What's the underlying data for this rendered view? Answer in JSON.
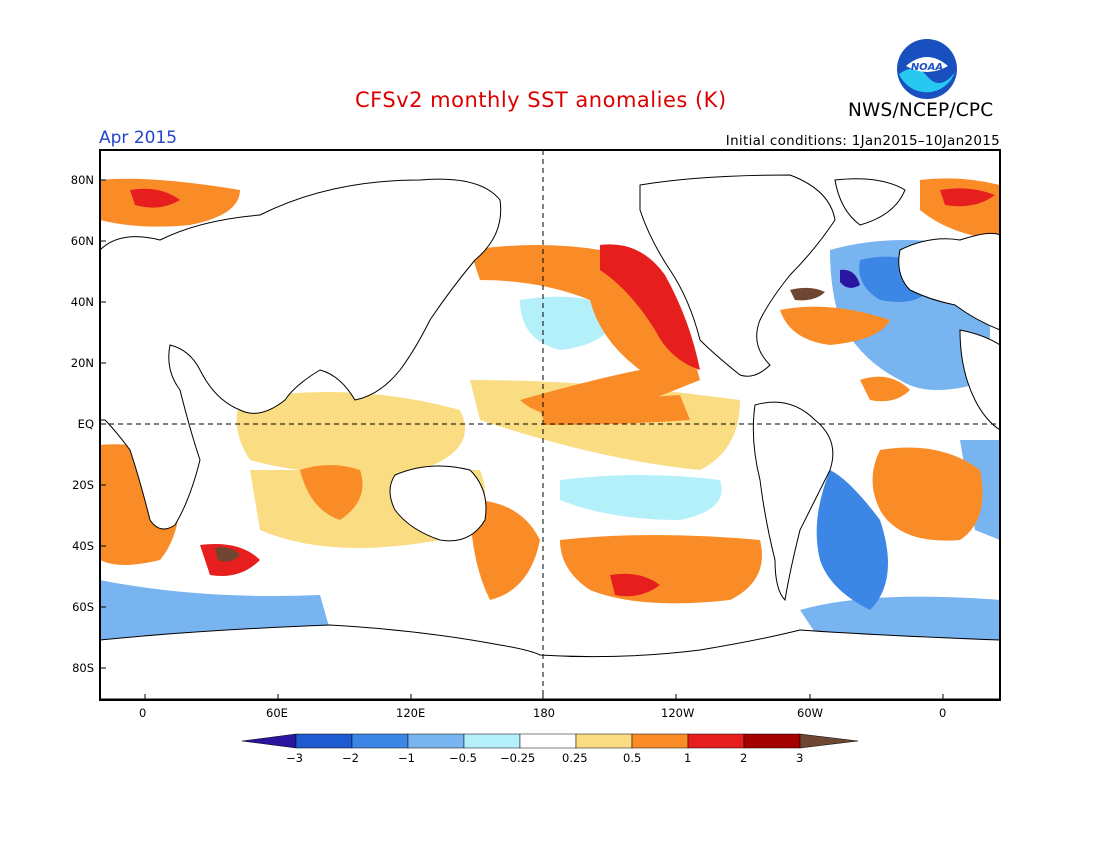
{
  "header": {
    "title": "CFSv2 monthly SST anomalies (K)",
    "period": "Apr 2015",
    "initial_conditions": "Initial conditions: 1Jan2015–10Jan2015",
    "agency": "NWS/NCEP/CPC",
    "logo_text": "NOAA"
  },
  "colors": {
    "title": "#dd0000",
    "period": "#2244cc",
    "frame": "#000000"
  },
  "map": {
    "lon_labels": [
      "0",
      "60E",
      "120E",
      "180",
      "120W",
      "60W",
      "0"
    ],
    "lat_labels": [
      "80N",
      "60N",
      "40N",
      "20N",
      "EQ",
      "20S",
      "40S",
      "60S",
      "80S"
    ]
  },
  "legend": {
    "labels": [
      "−3",
      "−2",
      "−1",
      "−0.5",
      "−0.25",
      "0.25",
      "0.5",
      "1",
      "2",
      "3"
    ],
    "colors": [
      "#2a14a0",
      "#1e5ad0",
      "#3c87e6",
      "#78b4f0",
      "#b4f0fa",
      "#ffffff",
      "#fadc82",
      "#fa8c28",
      "#e61e1e",
      "#a50000",
      "#6e4632"
    ]
  }
}
